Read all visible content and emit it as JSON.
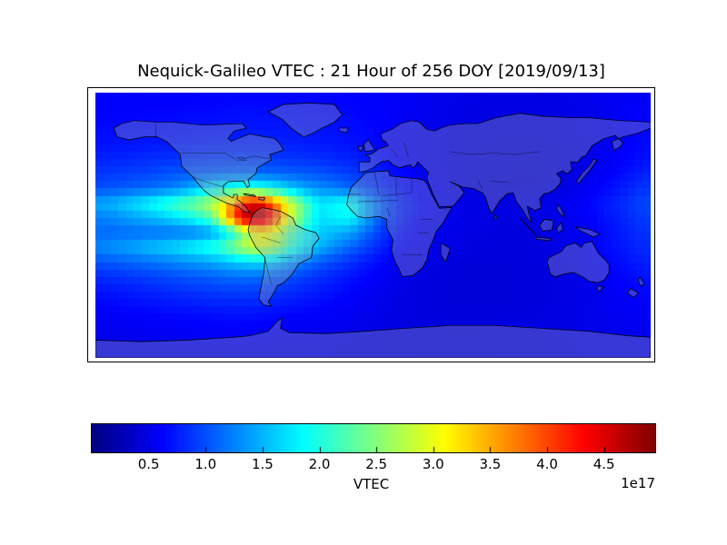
{
  "figure": {
    "title": "Nequick-Galileo VTEC : 21 Hour of 256 DOY [2019/09/13]",
    "background": "#ffffff"
  },
  "chart_data": {
    "type": "heatmap",
    "title": "Nequick-Galileo VTEC : 21 Hour of 256 DOY [2019/09/13]",
    "projection": "equirectangular world map",
    "x_axis": "longitude, -180 to 180 degrees",
    "y_axis": "latitude, 90 to -90 degrees",
    "colormap": "jet",
    "vmin": 0,
    "vmax": 4.95,
    "units_scale": "1e17",
    "grid_on": false,
    "colorbar": {
      "label": "VTEC",
      "offset_text": "1e17",
      "orientation": "horizontal",
      "ticks": [
        0.5,
        1.0,
        1.5,
        2.0,
        2.5,
        3.0,
        3.5,
        4.0,
        4.5
      ],
      "tick_labels": [
        "0.5",
        "1.0",
        "1.5",
        "2.0",
        "2.5",
        "3.0",
        "3.5",
        "4.0",
        "4.5"
      ]
    },
    "lon_centers": [
      -175,
      -165,
      -155,
      -145,
      -135,
      -125,
      -115,
      -105,
      -95,
      -85,
      -75,
      -65,
      -55,
      -45,
      -35,
      -25,
      -15,
      -5,
      5,
      15,
      25,
      35,
      45,
      55,
      65,
      75,
      85,
      95,
      105,
      115,
      125,
      135,
      145,
      155,
      165,
      175
    ],
    "lat_centers": [
      85,
      75,
      65,
      55,
      45,
      35,
      25,
      15,
      5,
      -5,
      -15,
      -25,
      -35,
      -45,
      -55,
      -65,
      -75,
      -85
    ],
    "grid": [
      [
        0.6,
        0.6,
        0.6,
        0.61,
        0.61,
        0.62,
        0.62,
        0.63,
        0.63,
        0.64,
        0.64,
        0.64,
        0.64,
        0.64,
        0.63,
        0.63,
        0.62,
        0.61,
        0.6,
        0.58,
        0.56,
        0.54,
        0.52,
        0.51,
        0.5,
        0.49,
        0.49,
        0.49,
        0.49,
        0.5,
        0.51,
        0.52,
        0.54,
        0.56,
        0.58,
        0.59
      ],
      [
        0.63,
        0.63,
        0.63,
        0.64,
        0.64,
        0.65,
        0.66,
        0.66,
        0.67,
        0.68,
        0.68,
        0.68,
        0.68,
        0.67,
        0.67,
        0.66,
        0.65,
        0.63,
        0.61,
        0.59,
        0.56,
        0.54,
        0.52,
        0.5,
        0.49,
        0.48,
        0.48,
        0.47,
        0.48,
        0.48,
        0.5,
        0.51,
        0.53,
        0.56,
        0.58,
        0.6
      ],
      [
        0.66,
        0.66,
        0.67,
        0.67,
        0.68,
        0.69,
        0.7,
        0.71,
        0.72,
        0.72,
        0.73,
        0.73,
        0.72,
        0.71,
        0.7,
        0.69,
        0.67,
        0.65,
        0.62,
        0.59,
        0.56,
        0.53,
        0.51,
        0.49,
        0.48,
        0.47,
        0.46,
        0.46,
        0.46,
        0.47,
        0.49,
        0.51,
        0.53,
        0.56,
        0.59,
        0.62
      ],
      [
        0.7,
        0.71,
        0.72,
        0.73,
        0.74,
        0.75,
        0.76,
        0.77,
        0.78,
        0.79,
        0.79,
        0.78,
        0.77,
        0.76,
        0.74,
        0.72,
        0.7,
        0.67,
        0.63,
        0.59,
        0.56,
        0.53,
        0.5,
        0.48,
        0.47,
        0.46,
        0.45,
        0.45,
        0.45,
        0.46,
        0.48,
        0.5,
        0.53,
        0.57,
        0.61,
        0.65
      ],
      [
        0.78,
        0.79,
        0.81,
        0.83,
        0.85,
        0.87,
        0.88,
        0.9,
        0.91,
        0.91,
        0.91,
        0.9,
        0.88,
        0.86,
        0.84,
        0.81,
        0.78,
        0.73,
        0.67,
        0.62,
        0.57,
        0.53,
        0.5,
        0.47,
        0.46,
        0.45,
        0.44,
        0.44,
        0.44,
        0.45,
        0.47,
        0.5,
        0.54,
        0.58,
        0.63,
        0.69
      ],
      [
        0.88,
        0.9,
        0.93,
        0.96,
        1.0,
        1.04,
        1.07,
        1.1,
        1.12,
        1.13,
        1.13,
        1.11,
        1.09,
        1.06,
        1.02,
        0.97,
        0.91,
        0.84,
        0.75,
        0.67,
        0.61,
        0.56,
        0.52,
        0.49,
        0.47,
        0.45,
        0.44,
        0.43,
        0.43,
        0.45,
        0.47,
        0.51,
        0.56,
        0.62,
        0.69,
        0.77
      ],
      [
        1.0,
        1.04,
        1.09,
        1.14,
        1.2,
        1.3,
        1.5,
        1.75,
        1.95,
        2.05,
        2.0,
        1.85,
        1.62,
        1.42,
        1.3,
        1.22,
        1.1,
        0.95,
        0.82,
        0.72,
        0.64,
        0.58,
        0.53,
        0.49,
        0.46,
        0.44,
        0.43,
        0.43,
        0.43,
        0.45,
        0.48,
        0.53,
        0.6,
        0.68,
        0.77,
        0.87
      ],
      [
        1.45,
        1.55,
        1.7,
        1.85,
        2.05,
        2.25,
        2.45,
        2.75,
        3.3,
        4.2,
        4.6,
        3.9,
        3.0,
        2.3,
        1.75,
        1.85,
        1.95,
        1.5,
        1.1,
        0.85,
        0.7,
        0.61,
        0.56,
        0.52,
        0.5,
        0.49,
        0.48,
        0.48,
        0.49,
        0.51,
        0.55,
        0.6,
        0.68,
        0.77,
        0.86,
        0.96
      ],
      [
        1.25,
        1.32,
        1.4,
        1.5,
        1.6,
        1.75,
        1.95,
        2.25,
        3.4,
        4.55,
        4.9,
        4.2,
        3.0,
        2.25,
        1.7,
        1.8,
        1.85,
        1.45,
        1.05,
        0.82,
        0.67,
        0.59,
        0.54,
        0.51,
        0.49,
        0.48,
        0.47,
        0.47,
        0.48,
        0.5,
        0.53,
        0.58,
        0.65,
        0.73,
        0.81,
        0.9
      ],
      [
        1.12,
        1.13,
        1.14,
        1.15,
        1.16,
        1.18,
        1.22,
        1.35,
        1.7,
        2.4,
        3.1,
        2.95,
        2.35,
        1.9,
        1.62,
        1.5,
        1.4,
        1.15,
        0.9,
        0.73,
        0.62,
        0.56,
        0.52,
        0.49,
        0.48,
        0.47,
        0.46,
        0.46,
        0.47,
        0.49,
        0.52,
        0.56,
        0.62,
        0.69,
        0.77,
        0.85
      ],
      [
        1.3,
        1.38,
        1.46,
        1.55,
        1.65,
        1.75,
        1.88,
        2.02,
        2.3,
        2.7,
        2.95,
        2.75,
        2.2,
        1.8,
        1.5,
        1.3,
        1.12,
        0.94,
        0.78,
        0.66,
        0.58,
        0.53,
        0.5,
        0.48,
        0.46,
        0.46,
        0.45,
        0.45,
        0.46,
        0.48,
        0.51,
        0.56,
        0.62,
        0.68,
        0.75,
        0.82
      ],
      [
        1.02,
        1.06,
        1.11,
        1.16,
        1.22,
        1.28,
        1.35,
        1.42,
        1.52,
        1.63,
        1.68,
        1.58,
        1.38,
        1.2,
        1.06,
        0.94,
        0.84,
        0.74,
        0.65,
        0.58,
        0.53,
        0.49,
        0.47,
        0.45,
        0.44,
        0.44,
        0.44,
        0.44,
        0.45,
        0.47,
        0.5,
        0.54,
        0.59,
        0.64,
        0.7,
        0.76
      ],
      [
        0.82,
        0.85,
        0.88,
        0.92,
        0.96,
        1.0,
        1.04,
        1.08,
        1.12,
        1.14,
        1.13,
        1.08,
        1.0,
        0.92,
        0.84,
        0.77,
        0.7,
        0.63,
        0.57,
        0.52,
        0.49,
        0.46,
        0.45,
        0.44,
        0.43,
        0.43,
        0.43,
        0.44,
        0.45,
        0.46,
        0.49,
        0.52,
        0.56,
        0.6,
        0.65,
        0.7
      ],
      [
        0.7,
        0.72,
        0.75,
        0.78,
        0.81,
        0.84,
        0.86,
        0.89,
        0.91,
        0.92,
        0.91,
        0.88,
        0.83,
        0.78,
        0.73,
        0.68,
        0.63,
        0.58,
        0.54,
        0.5,
        0.47,
        0.45,
        0.44,
        0.43,
        0.43,
        0.43,
        0.43,
        0.44,
        0.44,
        0.46,
        0.48,
        0.5,
        0.53,
        0.57,
        0.61,
        0.65
      ],
      [
        0.62,
        0.64,
        0.66,
        0.68,
        0.7,
        0.72,
        0.73,
        0.75,
        0.76,
        0.76,
        0.75,
        0.73,
        0.7,
        0.67,
        0.64,
        0.61,
        0.58,
        0.55,
        0.52,
        0.49,
        0.47,
        0.46,
        0.45,
        0.44,
        0.44,
        0.44,
        0.45,
        0.45,
        0.46,
        0.47,
        0.49,
        0.51,
        0.53,
        0.56,
        0.58,
        0.6
      ],
      [
        0.56,
        0.57,
        0.58,
        0.6,
        0.61,
        0.62,
        0.63,
        0.64,
        0.65,
        0.65,
        0.64,
        0.63,
        0.61,
        0.59,
        0.57,
        0.56,
        0.54,
        0.52,
        0.5,
        0.49,
        0.47,
        0.46,
        0.46,
        0.45,
        0.45,
        0.45,
        0.46,
        0.46,
        0.47,
        0.48,
        0.49,
        0.51,
        0.52,
        0.54,
        0.55,
        0.56
      ],
      [
        0.52,
        0.53,
        0.54,
        0.55,
        0.55,
        0.56,
        0.57,
        0.57,
        0.58,
        0.58,
        0.57,
        0.56,
        0.55,
        0.54,
        0.53,
        0.52,
        0.51,
        0.5,
        0.49,
        0.48,
        0.48,
        0.47,
        0.47,
        0.46,
        0.46,
        0.47,
        0.47,
        0.48,
        0.48,
        0.49,
        0.5,
        0.51,
        0.51,
        0.52,
        0.53,
        0.53
      ],
      [
        0.5,
        0.5,
        0.51,
        0.51,
        0.52,
        0.52,
        0.52,
        0.53,
        0.53,
        0.53,
        0.52,
        0.52,
        0.51,
        0.51,
        0.5,
        0.5,
        0.49,
        0.49,
        0.48,
        0.48,
        0.48,
        0.47,
        0.47,
        0.47,
        0.47,
        0.47,
        0.48,
        0.48,
        0.48,
        0.49,
        0.49,
        0.5,
        0.5,
        0.5,
        0.51,
        0.51
      ]
    ],
    "annotations": {
      "hotspot": "peak VTEC ~4.9e17 over Central America / northern South America (lon -95..-65, lat 0..15N)",
      "land_overlay": "continents drawn as translucent grey polygons with black coast/country lines"
    }
  }
}
